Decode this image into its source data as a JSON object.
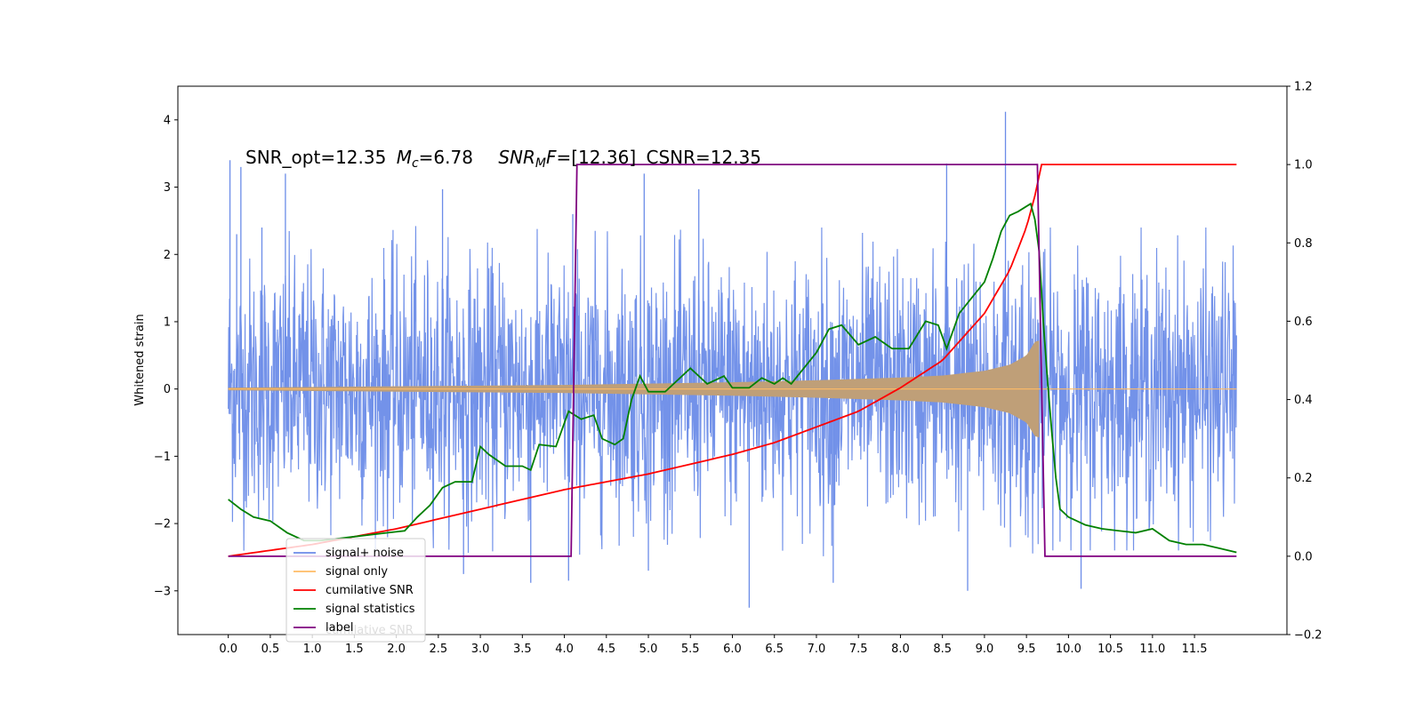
{
  "chart_data": {
    "type": "line",
    "annotation": {
      "snr_opt": "SNR_opt=12.35",
      "mc_symbol": "M",
      "mc_sub": "c",
      "mc_value": "=6.78",
      "snrmf_symbol": "SNR",
      "snrmf_sub": "M",
      "snrmf_F": "F",
      "snrmf_value": "=[12.36]",
      "csnr": "CSNR=12.35"
    },
    "ylabel": "Whitened strain",
    "xlim": [
      -0.6,
      12.6
    ],
    "ylim_left": [
      -3.65,
      4.5
    ],
    "ylim_right": [
      -0.2,
      1.2
    ],
    "x_ticks": [
      0.0,
      0.5,
      1.0,
      1.5,
      2.0,
      2.5,
      3.0,
      3.5,
      4.0,
      4.5,
      5.0,
      5.5,
      6.0,
      6.5,
      7.0,
      7.5,
      8.0,
      8.5,
      9.0,
      9.5,
      10.0,
      10.5,
      11.0,
      11.5
    ],
    "x_tick_labels": [
      "0.0",
      "0.5",
      "1.0",
      "1.5",
      "2.0",
      "2.5",
      "3.0",
      "3.5",
      "4.0",
      "4.5",
      "5.0",
      "5.5",
      "6.0",
      "6.5",
      "7.0",
      "7.5",
      "8.0",
      "8.5",
      "9.0",
      "9.5",
      "10.0",
      "10.5",
      "11.0",
      "11.5"
    ],
    "y_left_ticks": [
      -3,
      -2,
      -1,
      0,
      1,
      2,
      3,
      4
    ],
    "y_left_tick_labels": [
      "−3",
      "−2",
      "−1",
      "0",
      "1",
      "2",
      "3",
      "4"
    ],
    "y_right_ticks": [
      -0.2,
      0.0,
      0.2,
      0.4,
      0.6,
      0.8,
      1.0,
      1.2
    ],
    "y_right_tick_labels": [
      "−0.2",
      "0.0",
      "0.2",
      "0.4",
      "0.6",
      "0.8",
      "1.0",
      "1.2"
    ],
    "legend_position": "lower-left",
    "legend": [
      {
        "label": "signal+ noise",
        "color": "#6b8ce8"
      },
      {
        "label": "signal only",
        "color": "#ffbb66"
      },
      {
        "label": "cumilative SNR",
        "color": "#ff0000"
      },
      {
        "label": "signal statistics",
        "color": "#008000"
      },
      {
        "label": "label",
        "color": "#800080"
      }
    ],
    "ghost_legend_text": "cumilative SNR",
    "series": [
      {
        "name": "signal+ noise",
        "axis": "left",
        "color": "#6b8ce8",
        "x_range": [
          0.0,
          12.0
        ],
        "envelope_typical": 1.3,
        "spikes": [
          {
            "x": 0.02,
            "y": 3.4
          },
          {
            "x": 0.1,
            "y": 2.3
          },
          {
            "x": 0.15,
            "y": 3.3
          },
          {
            "x": 0.4,
            "y": 2.4
          },
          {
            "x": 0.68,
            "y": 3.2
          },
          {
            "x": 2.55,
            "y": 2.97
          },
          {
            "x": 4.1,
            "y": 2.6
          },
          {
            "x": 4.95,
            "y": 3.2
          },
          {
            "x": 5.6,
            "y": 2.97
          },
          {
            "x": 8.55,
            "y": 3.35
          },
          {
            "x": 9.25,
            "y": 4.12
          },
          {
            "x": 6.2,
            "y": -3.25
          },
          {
            "x": 8.8,
            "y": -3.0
          },
          {
            "x": 10.15,
            "y": -2.97
          },
          {
            "x": 3.6,
            "y": -2.88
          },
          {
            "x": 4.05,
            "y": -2.85
          },
          {
            "x": 7.2,
            "y": -2.88
          },
          {
            "x": 2.8,
            "y": -2.75
          },
          {
            "x": 5.0,
            "y": -2.7
          }
        ]
      },
      {
        "name": "signal only",
        "axis": "left",
        "color": "#ffbb66",
        "chirp_start": 0.0,
        "chirp_merge": 9.65,
        "amp_points": [
          [
            0.0,
            0.02
          ],
          [
            1.0,
            0.03
          ],
          [
            2.0,
            0.04
          ],
          [
            3.0,
            0.05
          ],
          [
            4.0,
            0.06
          ],
          [
            5.0,
            0.08
          ],
          [
            6.0,
            0.1
          ],
          [
            7.0,
            0.13
          ],
          [
            8.0,
            0.17
          ],
          [
            8.5,
            0.2
          ],
          [
            9.0,
            0.27
          ],
          [
            9.3,
            0.36
          ],
          [
            9.5,
            0.5
          ],
          [
            9.6,
            0.7
          ],
          [
            9.65,
            0.72
          ]
        ]
      },
      {
        "name": "cumilative SNR",
        "axis": "right",
        "color": "#ff0000",
        "points": [
          [
            0.0,
            0.0
          ],
          [
            1.0,
            0.03
          ],
          [
            2.0,
            0.07
          ],
          [
            3.0,
            0.12
          ],
          [
            4.0,
            0.17
          ],
          [
            5.0,
            0.21
          ],
          [
            6.0,
            0.26
          ],
          [
            6.5,
            0.29
          ],
          [
            7.0,
            0.33
          ],
          [
            7.5,
            0.37
          ],
          [
            8.0,
            0.43
          ],
          [
            8.5,
            0.5
          ],
          [
            9.0,
            0.62
          ],
          [
            9.3,
            0.73
          ],
          [
            9.5,
            0.84
          ],
          [
            9.6,
            0.92
          ],
          [
            9.68,
            1.0
          ],
          [
            12.0,
            1.0
          ]
        ]
      },
      {
        "name": "signal statistics",
        "axis": "right",
        "color": "#008000",
        "points": [
          [
            0.0,
            0.145
          ],
          [
            0.15,
            0.12
          ],
          [
            0.3,
            0.1
          ],
          [
            0.5,
            0.09
          ],
          [
            0.7,
            0.06
          ],
          [
            0.9,
            0.04
          ],
          [
            1.1,
            0.04
          ],
          [
            1.3,
            0.045
          ],
          [
            1.5,
            0.05
          ],
          [
            1.7,
            0.055
          ],
          [
            1.9,
            0.06
          ],
          [
            2.1,
            0.065
          ],
          [
            2.25,
            0.1
          ],
          [
            2.4,
            0.13
          ],
          [
            2.55,
            0.175
          ],
          [
            2.7,
            0.19
          ],
          [
            2.9,
            0.19
          ],
          [
            3.0,
            0.28
          ],
          [
            3.1,
            0.26
          ],
          [
            3.3,
            0.23
          ],
          [
            3.5,
            0.23
          ],
          [
            3.6,
            0.22
          ],
          [
            3.7,
            0.285
          ],
          [
            3.9,
            0.28
          ],
          [
            4.05,
            0.37
          ],
          [
            4.2,
            0.35
          ],
          [
            4.35,
            0.36
          ],
          [
            4.45,
            0.3
          ],
          [
            4.6,
            0.285
          ],
          [
            4.7,
            0.3
          ],
          [
            4.8,
            0.4
          ],
          [
            4.9,
            0.46
          ],
          [
            5.0,
            0.42
          ],
          [
            5.2,
            0.42
          ],
          [
            5.4,
            0.46
          ],
          [
            5.5,
            0.48
          ],
          [
            5.7,
            0.44
          ],
          [
            5.9,
            0.46
          ],
          [
            6.0,
            0.43
          ],
          [
            6.2,
            0.43
          ],
          [
            6.35,
            0.455
          ],
          [
            6.5,
            0.44
          ],
          [
            6.6,
            0.455
          ],
          [
            6.7,
            0.44
          ],
          [
            6.85,
            0.48
          ],
          [
            7.0,
            0.52
          ],
          [
            7.15,
            0.58
          ],
          [
            7.3,
            0.59
          ],
          [
            7.5,
            0.54
          ],
          [
            7.7,
            0.56
          ],
          [
            7.9,
            0.53
          ],
          [
            8.1,
            0.53
          ],
          [
            8.3,
            0.6
          ],
          [
            8.45,
            0.59
          ],
          [
            8.55,
            0.53
          ],
          [
            8.7,
            0.62
          ],
          [
            8.85,
            0.66
          ],
          [
            9.0,
            0.7
          ],
          [
            9.1,
            0.76
          ],
          [
            9.2,
            0.83
          ],
          [
            9.3,
            0.87
          ],
          [
            9.4,
            0.88
          ],
          [
            9.55,
            0.9
          ],
          [
            9.6,
            0.86
          ],
          [
            9.65,
            0.78
          ],
          [
            9.7,
            0.6
          ],
          [
            9.75,
            0.45
          ],
          [
            9.8,
            0.32
          ],
          [
            9.85,
            0.2
          ],
          [
            9.9,
            0.12
          ],
          [
            10.0,
            0.1
          ],
          [
            10.2,
            0.08
          ],
          [
            10.4,
            0.07
          ],
          [
            10.6,
            0.065
          ],
          [
            10.8,
            0.06
          ],
          [
            11.0,
            0.07
          ],
          [
            11.2,
            0.04
          ],
          [
            11.4,
            0.03
          ],
          [
            11.6,
            0.03
          ],
          [
            11.8,
            0.02
          ],
          [
            12.0,
            0.01
          ]
        ]
      },
      {
        "name": "label",
        "axis": "right",
        "color": "#800080",
        "points": [
          [
            0.0,
            0.0
          ],
          [
            4.08,
            0.0
          ],
          [
            4.15,
            1.0
          ],
          [
            9.63,
            1.0
          ],
          [
            9.72,
            0.0
          ],
          [
            12.0,
            0.0
          ]
        ]
      }
    ]
  }
}
